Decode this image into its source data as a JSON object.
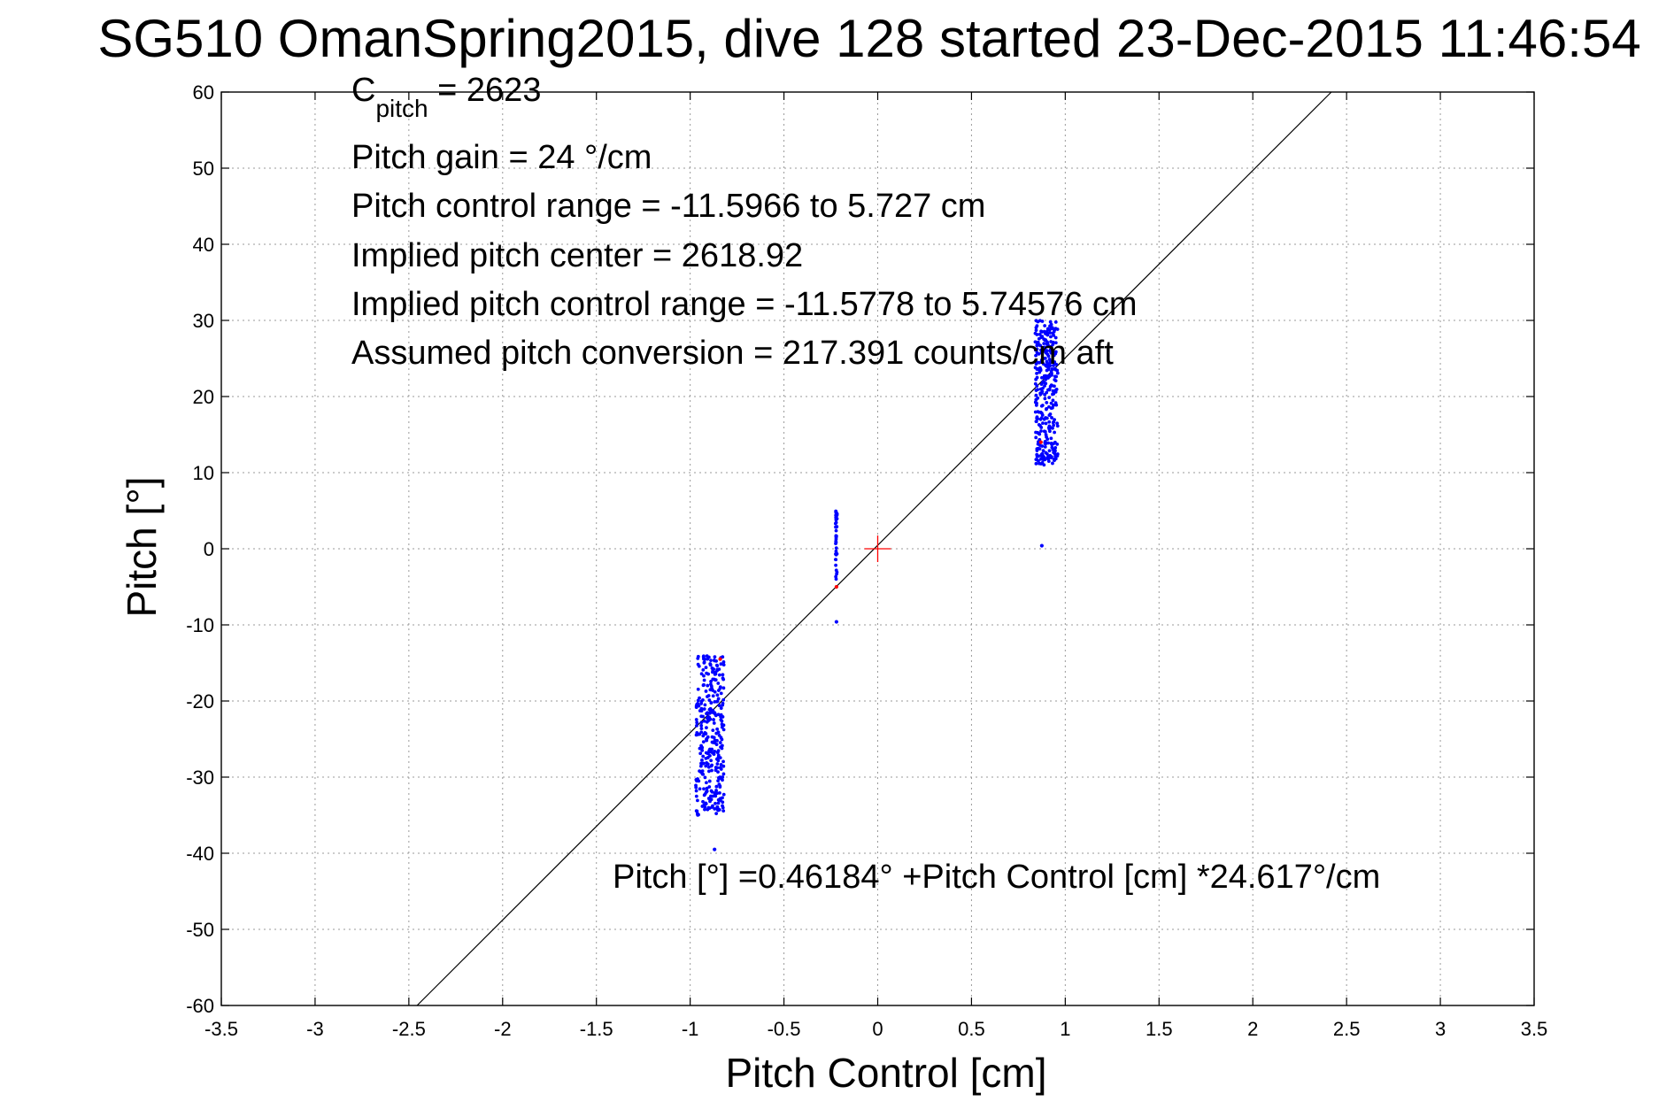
{
  "chart_data": {
    "type": "scatter",
    "title": "SG510 OmanSpring2015, dive 128 started 23-Dec-2015 11:46:54",
    "xlabel": "Pitch Control [cm]",
    "ylabel": "Pitch [°]",
    "xlim": [
      -3.5,
      3.5
    ],
    "ylim": [
      -60,
      60
    ],
    "xticks": [
      -3.5,
      -3,
      -2.5,
      -2,
      -1.5,
      -1,
      -0.5,
      0,
      0.5,
      1,
      1.5,
      2,
      2.5,
      3,
      3.5
    ],
    "yticks": [
      -60,
      -50,
      -40,
      -30,
      -20,
      -10,
      0,
      10,
      20,
      30,
      40,
      50,
      60
    ],
    "xtick_labels": [
      "-3.5",
      "-3",
      "-2.5",
      "-2",
      "-1.5",
      "-1",
      "-0.5",
      "0",
      "0.5",
      "1",
      "1.5",
      "2",
      "2.5",
      "3",
      "3.5"
    ],
    "ytick_labels": [
      "-60",
      "-50",
      "-40",
      "-30",
      "-20",
      "-10",
      "0",
      "10",
      "20",
      "30",
      "40",
      "50",
      "60"
    ],
    "grid": true,
    "fit_line": {
      "intercept": 0.46184,
      "slope": 24.617
    },
    "center_marker": {
      "x": 0,
      "y": 0,
      "color": "#ff0000"
    },
    "series": [
      {
        "color": "#0000ff",
        "clusters": [
          {
            "x_range": [
              -0.97,
              -0.82
            ],
            "y_range": [
              -35,
              -14
            ],
            "count": 320,
            "seed": 11
          },
          {
            "x_range": [
              0.84,
              0.96
            ],
            "y_range": [
              11,
              30
            ],
            "count": 320,
            "seed": 23
          },
          {
            "x_range": [
              -0.225,
              -0.215
            ],
            "y_range": [
              -4,
              5
            ],
            "count": 40,
            "seed": 37
          }
        ],
        "points": [
          {
            "x": -0.87,
            "y": -39.5
          },
          {
            "x": 0.875,
            "y": 0.4
          },
          {
            "x": -0.22,
            "y": -9.6
          }
        ]
      },
      {
        "color": "#ff0000",
        "points": [
          {
            "x": -0.22,
            "y": -5
          },
          {
            "x": -0.84,
            "y": -14.5
          },
          {
            "x": 0.87,
            "y": 14
          }
        ]
      }
    ],
    "annotations": {
      "c_pitch_main": "C",
      "c_pitch_sub": "pitch",
      "c_pitch_value": " = 2623",
      "pitch_gain": "Pitch gain = 24 °/cm",
      "control_range": "Pitch control range = -11.5966 to 5.727 cm",
      "implied_center": "Implied pitch center = 2618.92",
      "implied_range": "Implied pitch control range = -11.5778 to 5.74576 cm",
      "conversion": "Assumed pitch conversion = 217.391 counts/cm aft",
      "fit_equation": "Pitch [°] =0.46184° +Pitch Control [cm] *24.617°/cm"
    }
  }
}
